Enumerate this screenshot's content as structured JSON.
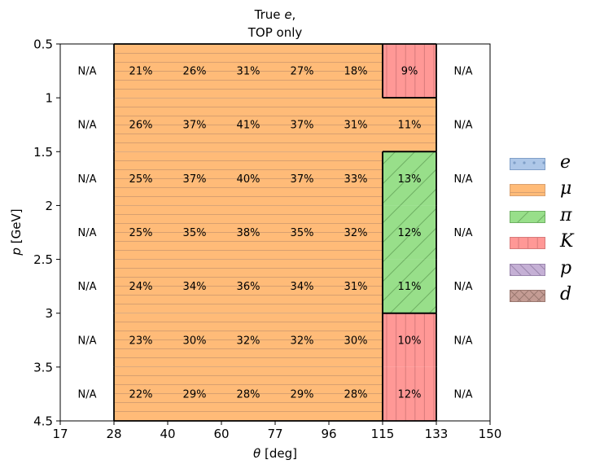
{
  "chart_data": {
    "type": "heatmap",
    "title_line1_prefix": "True ",
    "title_line1_var": "e",
    "title_line1_suffix": ",",
    "title_line2": "TOP only",
    "xlabel_var": "θ",
    "xlabel_unit": " [deg]",
    "ylabel_var": "p",
    "ylabel_unit": " [GeV]",
    "x_edges": [
      17,
      28,
      40,
      60,
      77,
      96,
      115,
      133,
      150
    ],
    "x_tick_labels": [
      "17",
      "28",
      "40",
      "60",
      "77",
      "96",
      "115",
      "133",
      "150"
    ],
    "y_edges": [
      0.5,
      1,
      1.5,
      2,
      2.5,
      3,
      3.5,
      4.5
    ],
    "y_tick_values": [
      0.5,
      1,
      1.5,
      2,
      2.5,
      3,
      3.5,
      4.5
    ],
    "y_tick_labels": [
      "0.5",
      "1",
      "1.5",
      "2",
      "2.5",
      "3",
      "3.5",
      "4.5"
    ],
    "y_inverted": true,
    "cell_labels": [
      [
        "N/A",
        "21%",
        "26%",
        "31%",
        "27%",
        "18%",
        "9%",
        "N/A"
      ],
      [
        "N/A",
        "26%",
        "37%",
        "41%",
        "37%",
        "31%",
        "11%",
        "N/A"
      ],
      [
        "N/A",
        "25%",
        "37%",
        "40%",
        "37%",
        "33%",
        "13%",
        "N/A"
      ],
      [
        "N/A",
        "25%",
        "35%",
        "38%",
        "35%",
        "32%",
        "12%",
        "N/A"
      ],
      [
        "N/A",
        "24%",
        "34%",
        "36%",
        "34%",
        "31%",
        "11%",
        "N/A"
      ],
      [
        "N/A",
        "23%",
        "30%",
        "32%",
        "32%",
        "30%",
        "10%",
        "N/A"
      ],
      [
        "N/A",
        "22%",
        "29%",
        "28%",
        "29%",
        "28%",
        "12%",
        "N/A"
      ]
    ],
    "cell_classes": [
      [
        "",
        "mu",
        "mu",
        "mu",
        "mu",
        "mu",
        "K",
        ""
      ],
      [
        "",
        "mu",
        "mu",
        "mu",
        "mu",
        "mu",
        "mu",
        ""
      ],
      [
        "",
        "mu",
        "mu",
        "mu",
        "mu",
        "mu",
        "pi",
        ""
      ],
      [
        "",
        "mu",
        "mu",
        "mu",
        "mu",
        "mu",
        "pi",
        ""
      ],
      [
        "",
        "mu",
        "mu",
        "mu",
        "mu",
        "mu",
        "pi",
        ""
      ],
      [
        "",
        "mu",
        "mu",
        "mu",
        "mu",
        "mu",
        "K",
        ""
      ],
      [
        "",
        "mu",
        "mu",
        "mu",
        "mu",
        "mu",
        "K",
        ""
      ]
    ],
    "legend": [
      {
        "key": "e",
        "label": "e",
        "color": "#aec7e8",
        "edge": "#7f9fc8",
        "hatch": "dots"
      },
      {
        "key": "mu",
        "label": "μ",
        "color": "#ffbb78",
        "edge": "#d8a070",
        "hatch": "horizontal"
      },
      {
        "key": "pi",
        "label": "π",
        "color": "#98df8a",
        "edge": "#6fb063",
        "hatch": "diagonal"
      },
      {
        "key": "K",
        "label": "K",
        "color": "#ff9896",
        "edge": "#d77a7a",
        "hatch": "vertical"
      },
      {
        "key": "p",
        "label": "p",
        "color": "#c5b0d5",
        "edge": "#9a86ad",
        "hatch": "backdiag"
      },
      {
        "key": "d",
        "label": "d",
        "color": "#c49c94",
        "edge": "#9a7870",
        "hatch": "cross"
      }
    ],
    "legend_position": "right",
    "grid": false
  }
}
